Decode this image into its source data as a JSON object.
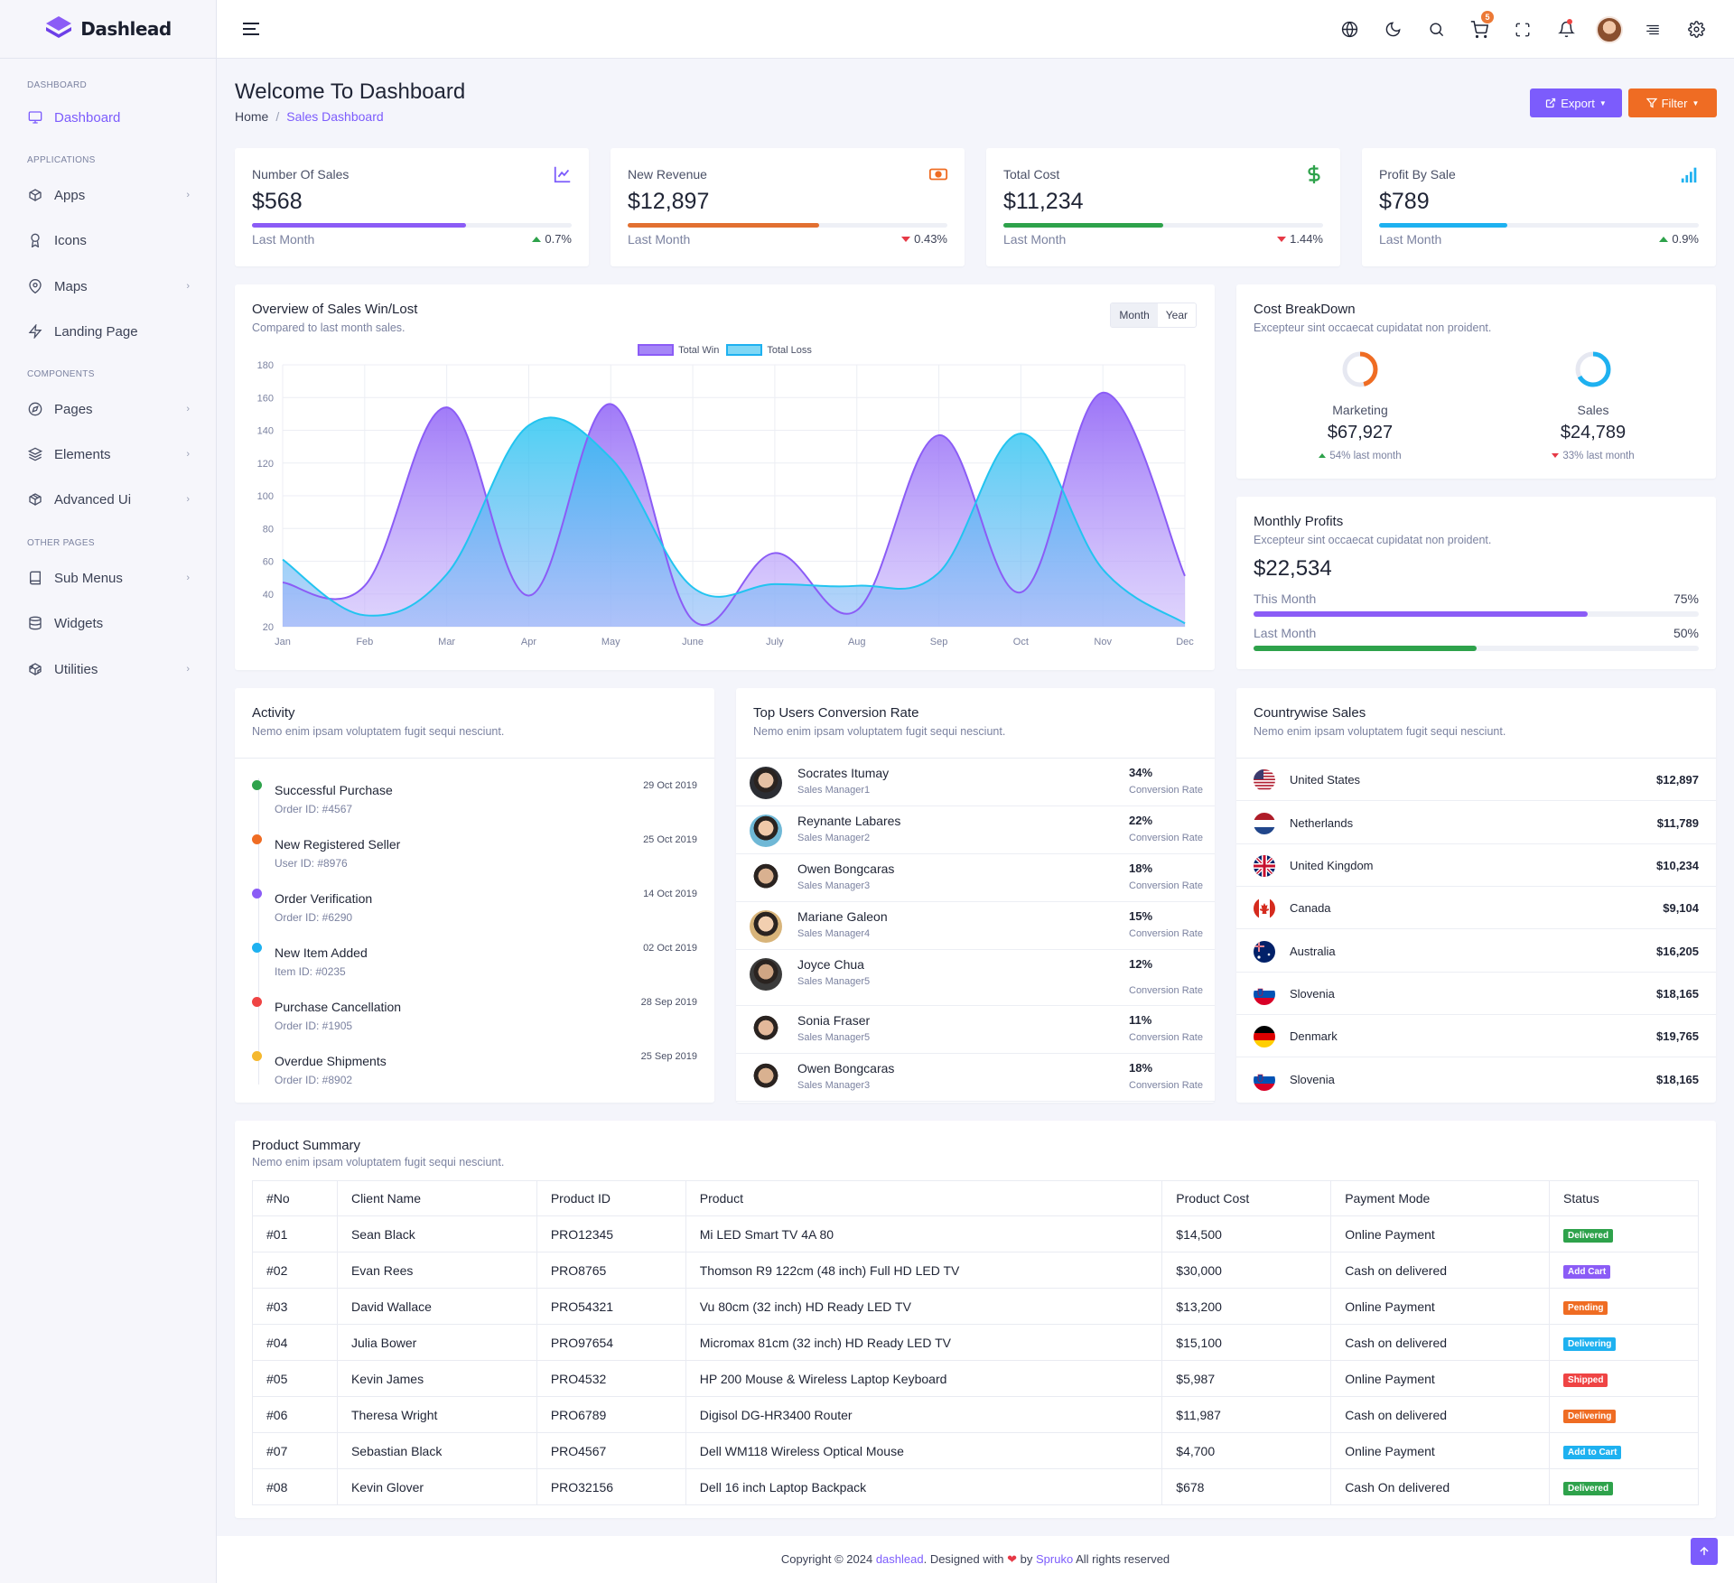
{
  "app": {
    "name": "Dashlead"
  },
  "colors": {
    "primary": "#7c5cfc",
    "orange": "#ef6c23",
    "green": "#2ea24b",
    "blue": "#1eb1f0"
  },
  "sidebar": {
    "categories": [
      "DASHBOARD",
      "APPLICATIONS",
      "COMPONENTS",
      "OTHER PAGES"
    ],
    "items": [
      {
        "label": "Dashboard",
        "icon": "monitor-icon"
      },
      {
        "label": "Apps",
        "icon": "box-icon"
      },
      {
        "label": "Icons",
        "icon": "award-icon"
      },
      {
        "label": "Maps",
        "icon": "map-pin-icon"
      },
      {
        "label": "Landing Page",
        "icon": "zap-icon"
      },
      {
        "label": "Pages",
        "icon": "compass-icon"
      },
      {
        "label": "Elements",
        "icon": "layers-icon"
      },
      {
        "label": "Advanced Ui",
        "icon": "package-icon"
      },
      {
        "label": "Sub Menus",
        "icon": "book-icon"
      },
      {
        "label": "Widgets",
        "icon": "database-icon"
      },
      {
        "label": "Utilities",
        "icon": "codesandbox-icon"
      }
    ]
  },
  "header": {
    "cart_count": "5"
  },
  "page": {
    "title": "Welcome To Dashboard",
    "breadcrumb_home": "Home",
    "breadcrumb_current": "Sales Dashboard",
    "export_label": "Export",
    "filter_label": "Filter"
  },
  "stats": [
    {
      "label": "Number Of Sales",
      "value": "$568",
      "foot": "Last Month",
      "change": "0.7%",
      "progress": 0.67
    },
    {
      "label": "New Revenue",
      "value": "$12,897",
      "foot": "Last Month",
      "change": "0.43%",
      "progress": 0.6
    },
    {
      "label": "Total Cost",
      "value": "$11,234",
      "foot": "Last Month",
      "change": "1.44%",
      "progress": 0.5
    },
    {
      "label": "Profit By Sale",
      "value": "$789",
      "foot": "Last Month",
      "change": "0.9%",
      "progress": 0.4
    }
  ],
  "overview": {
    "title": "Overview of Sales Win/Lost",
    "subtitle": "Compared to last month sales.",
    "toggle_month": "Month",
    "toggle_year": "Year"
  },
  "chart_data": {
    "type": "area",
    "categories": [
      "Jan",
      "Feb",
      "Mar",
      "Apr",
      "May",
      "June",
      "July",
      "Aug",
      "Sep",
      "Oct",
      "Nov",
      "Dec"
    ],
    "yticks": [
      20,
      40,
      60,
      80,
      100,
      120,
      140,
      160,
      180
    ],
    "ylim": [
      20,
      180
    ],
    "series": [
      {
        "name": "Total Win",
        "values": [
          47,
          45,
          154,
          39,
          156,
          24,
          65,
          30,
          137,
          41,
          163,
          51
        ],
        "color": "#8b5cf6"
      },
      {
        "name": "Total Loss",
        "values": [
          61,
          27,
          52,
          143,
          123,
          44,
          46,
          45,
          53,
          138,
          55,
          22
        ],
        "color": "#22c4f0"
      }
    ],
    "grid": true,
    "legend": "top-center"
  },
  "cost_breakdown": {
    "title": "Cost BreakDown",
    "subtitle": "Excepteur sint occaecat cupidatat non proident.",
    "items": [
      {
        "name": "Marketing",
        "value": "$67,927",
        "change": "54% last month",
        "share": 0.54,
        "color": "#ef6c23"
      },
      {
        "name": "Sales",
        "value": "$24,789",
        "change": "33% last month",
        "share": 0.33,
        "color": "#1eb1f0"
      }
    ]
  },
  "monthly_profits": {
    "title": "Monthly Profits",
    "subtitle": "Excepteur sint occaecat cupidatat non proident.",
    "value": "$22,534",
    "rows": [
      {
        "label": "This Month",
        "percent": "75%",
        "color": "#8b5cf6"
      },
      {
        "label": "Last Month",
        "percent": "50%",
        "color": "#2ea24b"
      }
    ]
  },
  "activity": {
    "title": "Activity",
    "subtitle": "Nemo enim ipsam voluptatem fugit sequi nesciunt.",
    "items": [
      {
        "title": "Successful Purchase",
        "sub": "Order ID: #4567",
        "date": "29 Oct 2019",
        "color": "#2ea24b"
      },
      {
        "title": "New Registered Seller",
        "sub": "User ID: #8976",
        "date": "25 Oct 2019",
        "color": "#ef6c23"
      },
      {
        "title": "Order Verification",
        "sub": "Order ID: #6290",
        "date": "14 Oct 2019",
        "color": "#8b5cf6"
      },
      {
        "title": "New Item Added",
        "sub": "Item ID: #0235",
        "date": "02 Oct 2019",
        "color": "#1eb1f0"
      },
      {
        "title": "Purchase Cancellation",
        "sub": "Order ID: #1905",
        "date": "28 Sep 2019",
        "color": "#ef4444"
      },
      {
        "title": "Overdue Shipments",
        "sub": "Order ID: #8902",
        "date": "25 Sep 2019",
        "color": "#f5b82e"
      }
    ]
  },
  "users": {
    "title": "Top Users Conversion Rate",
    "subtitle": "Nemo enim ipsam voluptatem fugit sequi nesciunt.",
    "rate_label": "Conversion Rate",
    "items": [
      {
        "name": "Socrates Itumay",
        "role": "Sales Manager1",
        "pct": "34%"
      },
      {
        "name": "Reynante Labares",
        "role": "Sales Manager2",
        "pct": "22%"
      },
      {
        "name": "Owen Bongcaras",
        "role": "Sales Manager3",
        "pct": "18%"
      },
      {
        "name": "Mariane Galeon",
        "role": "Sales Manager4",
        "pct": "15%"
      },
      {
        "name": "Joyce Chua",
        "role": "Sales Manager5",
        "pct": "12%"
      },
      {
        "name": "Sonia Fraser",
        "role": "Sales Manager5",
        "pct": "11%"
      },
      {
        "name": "Owen Bongcaras",
        "role": "Sales Manager3",
        "pct": "18%"
      }
    ]
  },
  "countries": {
    "title": "Countrywise Sales",
    "subtitle": "Nemo enim ipsam voluptatem fugit sequi nesciunt.",
    "items": [
      {
        "name": "United States",
        "value": "$12,897",
        "flag": "us-flag"
      },
      {
        "name": "Netherlands",
        "value": "$11,789",
        "flag": "nl-flag"
      },
      {
        "name": "United Kingdom",
        "value": "$10,234",
        "flag": "gb-flag"
      },
      {
        "name": "Canada",
        "value": "$9,104",
        "flag": "ca-flag"
      },
      {
        "name": "Australia",
        "value": "$16,205",
        "flag": "au-flag"
      },
      {
        "name": "Slovenia",
        "value": "$18,165",
        "flag": "si-flag"
      },
      {
        "name": "Denmark",
        "value": "$19,765",
        "flag": "de-flag"
      },
      {
        "name": "Slovenia",
        "value": "$18,165",
        "flag": "si-flag"
      }
    ]
  },
  "products": {
    "title": "Product Summary",
    "subtitle": "Nemo enim ipsam voluptatem fugit sequi nesciunt.",
    "columns": [
      "#No",
      "Client Name",
      "Product ID",
      "Product",
      "Product Cost",
      "Payment Mode",
      "Status"
    ],
    "rows": [
      {
        "no": "#01",
        "client": "Sean Black",
        "pid": "PRO12345",
        "product": "Mi LED Smart TV 4A 80",
        "cost": "$14,500",
        "mode": "Online Payment",
        "status": "Delivered",
        "color": "#2ea24b"
      },
      {
        "no": "#02",
        "client": "Evan Rees",
        "pid": "PRO8765",
        "product": "Thomson R9 122cm (48 inch) Full HD LED TV",
        "cost": "$30,000",
        "mode": "Cash on delivered",
        "status": "Add Cart",
        "color": "#8b5cf6"
      },
      {
        "no": "#03",
        "client": "David Wallace",
        "pid": "PRO54321",
        "product": "Vu 80cm (32 inch) HD Ready LED TV",
        "cost": "$13,200",
        "mode": "Online Payment",
        "status": "Pending",
        "color": "#ef6c23"
      },
      {
        "no": "#04",
        "client": "Julia Bower",
        "pid": "PRO97654",
        "product": "Micromax 81cm (32 inch) HD Ready LED TV",
        "cost": "$15,100",
        "mode": "Cash on delivered",
        "status": "Delivering",
        "color": "#1eb1f0"
      },
      {
        "no": "#05",
        "client": "Kevin James",
        "pid": "PRO4532",
        "product": "HP 200 Mouse & Wireless Laptop Keyboard",
        "cost": "$5,987",
        "mode": "Online Payment",
        "status": "Shipped",
        "color": "#ef4444"
      },
      {
        "no": "#06",
        "client": "Theresa Wright",
        "pid": "PRO6789",
        "product": "Digisol DG-HR3400 Router",
        "cost": "$11,987",
        "mode": "Cash on delivered",
        "status": "Delivering",
        "color": "#ef6c23"
      },
      {
        "no": "#07",
        "client": "Sebastian Black",
        "pid": "PRO4567",
        "product": "Dell WM118 Wireless Optical Mouse",
        "cost": "$4,700",
        "mode": "Online Payment",
        "status": "Add to Cart",
        "color": "#1eb1f0"
      },
      {
        "no": "#08",
        "client": "Kevin Glover",
        "pid": "PRO32156",
        "product": "Dell 16 inch Laptop Backpack",
        "cost": "$678",
        "mode": "Cash On delivered",
        "status": "Delivered",
        "color": "#2ea24b"
      }
    ]
  },
  "footer": {
    "prefix": "Copyright © 2024",
    "brand": "dashlead",
    "mid": ". Designed with",
    "by": "by",
    "company": "Spruko",
    "suffix": "All rights reserved"
  }
}
